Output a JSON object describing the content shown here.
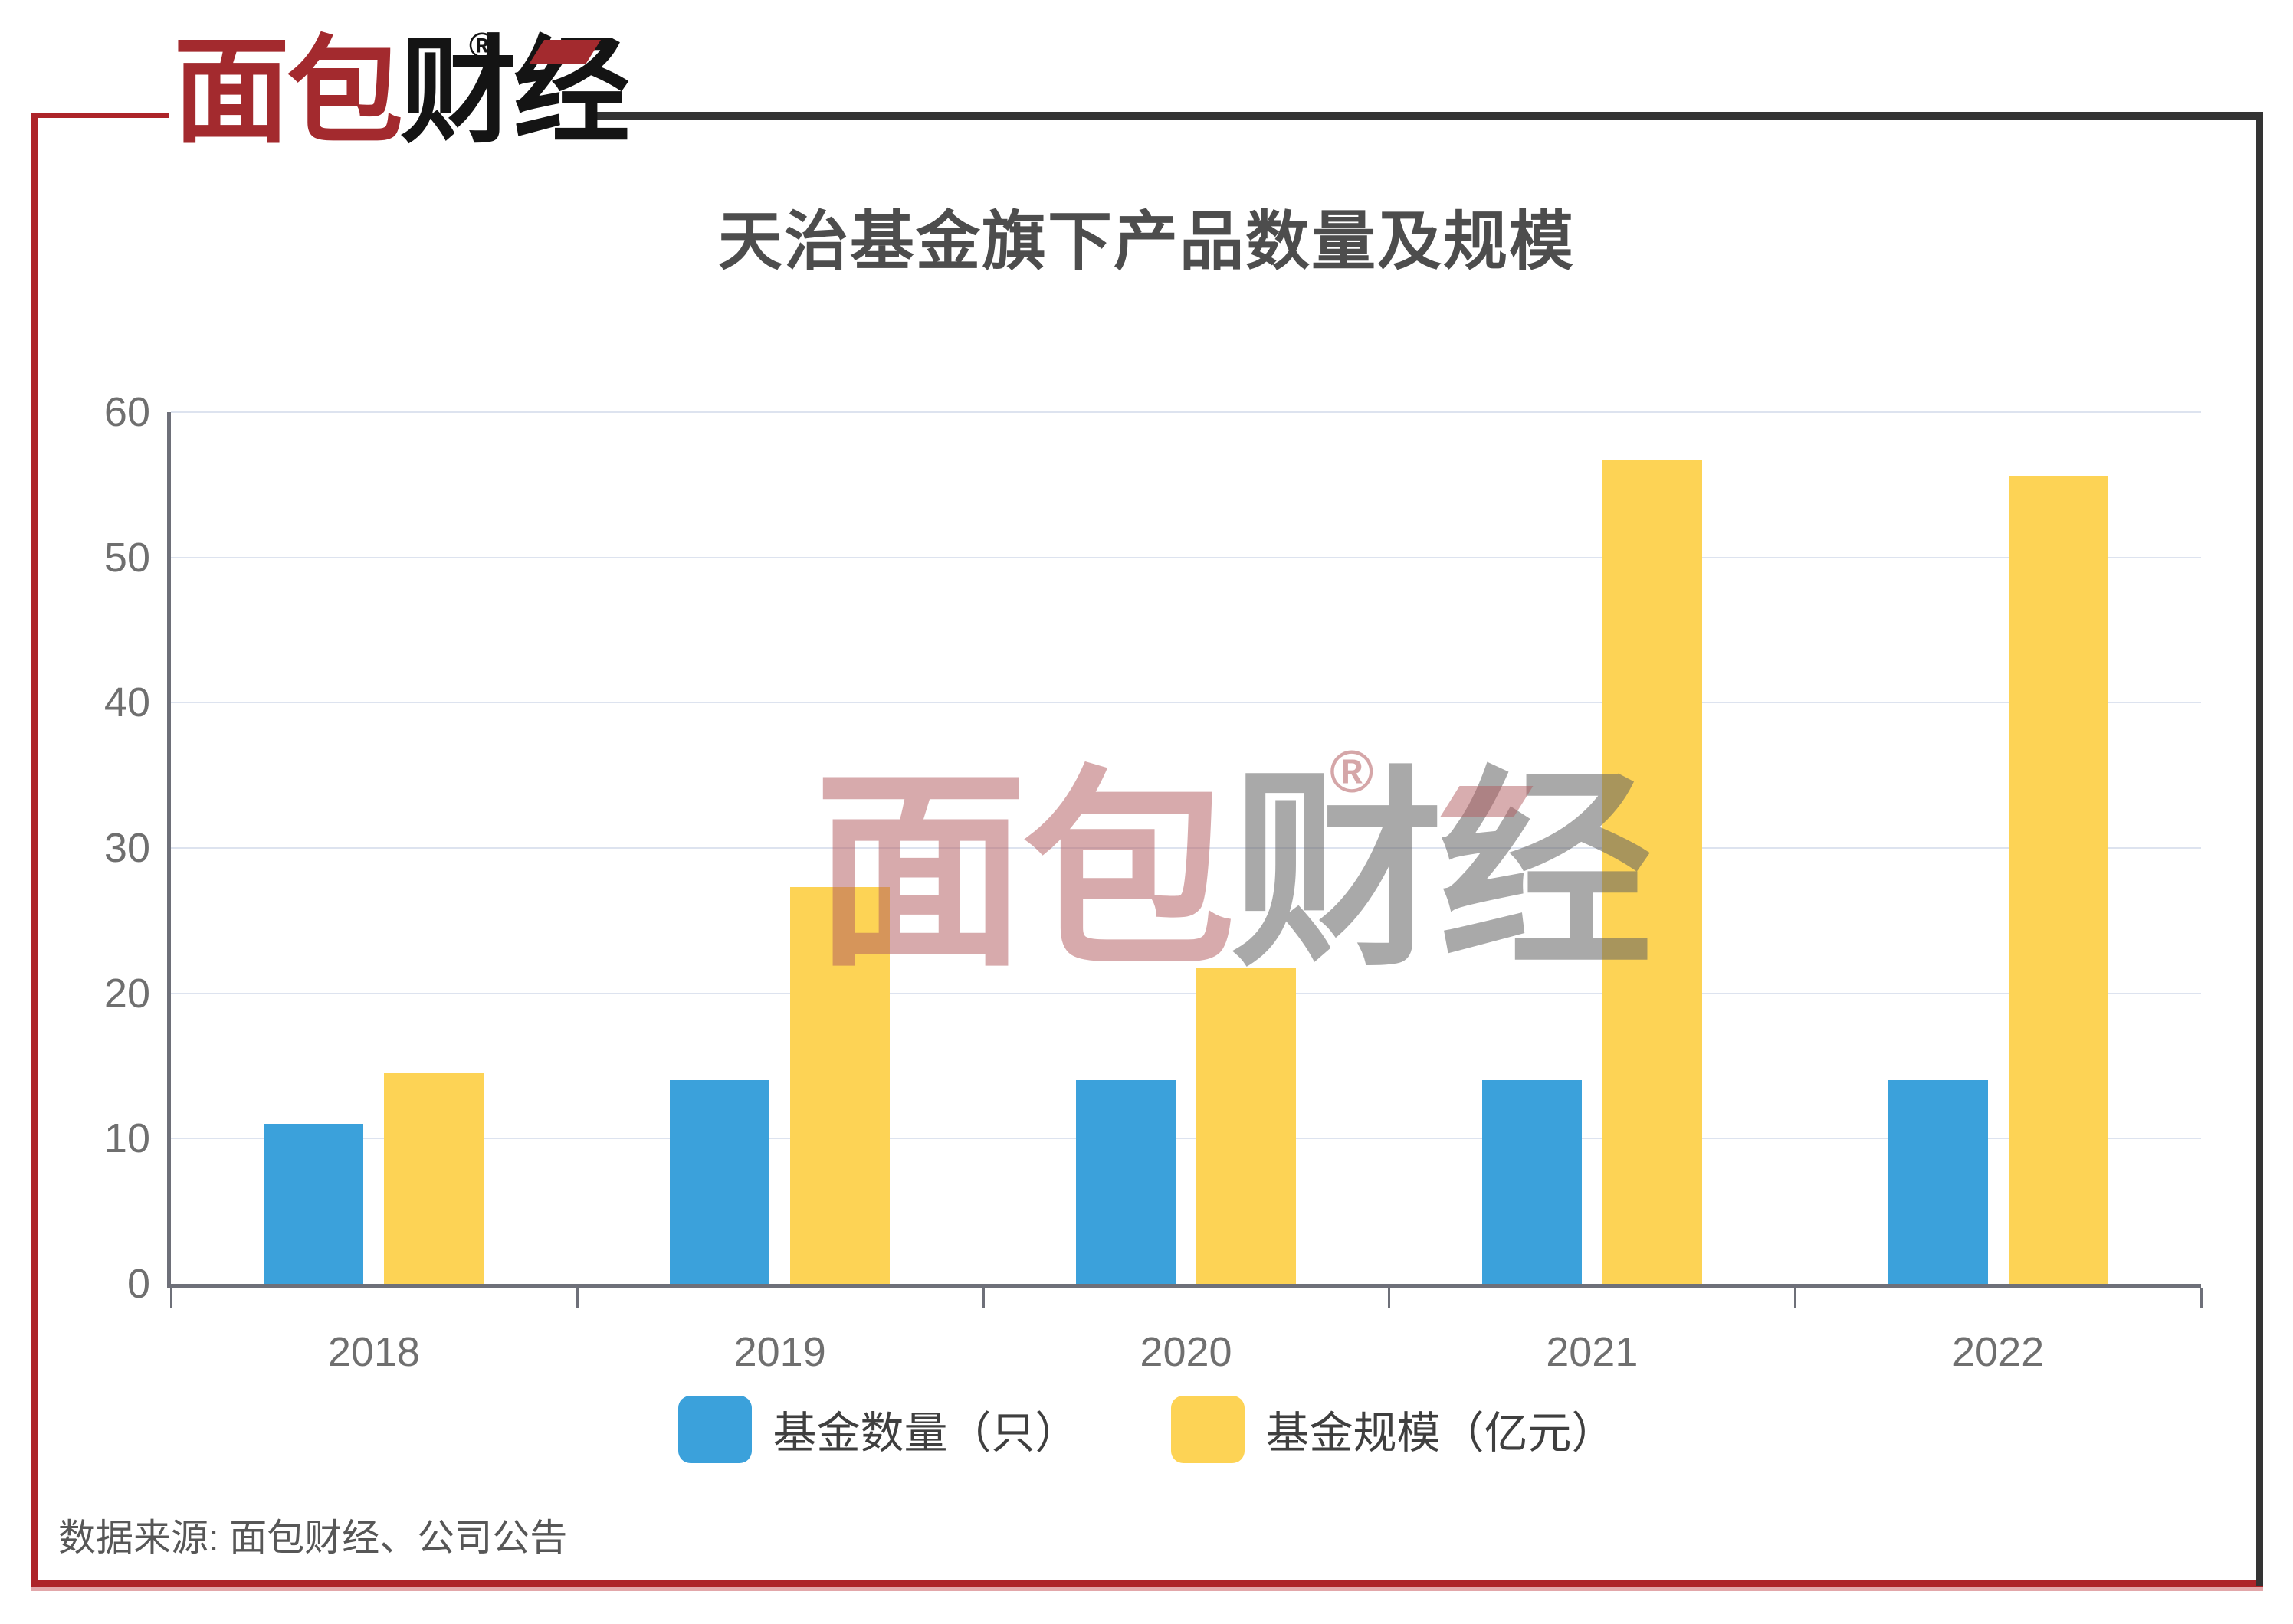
{
  "frame": {
    "accent_red": "#AD2429",
    "accent_dark": "#333333"
  },
  "logo": {
    "text_red": "面包",
    "text_black": "财经",
    "registered_mark": "®"
  },
  "chart_data": {
    "type": "bar",
    "title": "天治基金旗下产品数量及规模",
    "categories": [
      "2018",
      "2019",
      "2020",
      "2021",
      "2022"
    ],
    "series": [
      {
        "name": "基金数量（只）",
        "color": "#3BA1DB",
        "values": [
          11,
          14,
          14,
          14,
          14
        ]
      },
      {
        "name": "基金规模（亿元）",
        "color": "#FDD355",
        "values": [
          14.5,
          27.3,
          21.7,
          56.7,
          55.6
        ]
      }
    ],
    "ylim": [
      0,
      60
    ],
    "yticks": [
      0,
      10,
      20,
      30,
      40,
      50,
      60
    ],
    "grid": true,
    "legend_position": "bottom"
  },
  "watermark": {
    "text_pink": "面包",
    "text_gray": "财经",
    "registered_mark": "®"
  },
  "source": {
    "label": "数据来源: 面包财经、公司公告"
  }
}
